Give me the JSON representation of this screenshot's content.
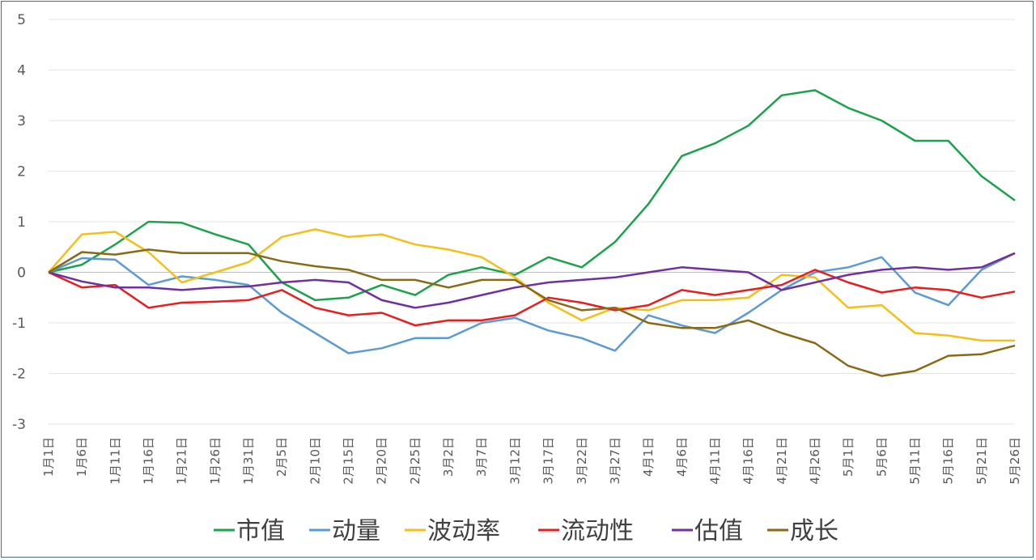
{
  "chart_data": {
    "type": "line",
    "title": "",
    "xlabel": "",
    "ylabel": "",
    "ylim": [
      -3,
      5
    ],
    "yticks": [
      5,
      4,
      3,
      2,
      1,
      0,
      -1,
      -2,
      -3
    ],
    "grid": true,
    "legend_position": "bottom",
    "x_tick_labels": [
      "1月1日",
      "1月6日",
      "1月11日",
      "1月16日",
      "1月21日",
      "1月26日",
      "1月31日",
      "2月5日",
      "2月10日",
      "2月15日",
      "2月20日",
      "2月25日",
      "3月2日",
      "3月7日",
      "3月12日",
      "3月17日",
      "3月22日",
      "3月27日",
      "4月1日",
      "4月6日",
      "4月11日",
      "4月16日",
      "4月21日",
      "4月26日",
      "5月1日",
      "5月6日",
      "5月11日",
      "5月16日",
      "5月21日",
      "5月26日"
    ],
    "x": [
      "1月1日",
      "1月6日",
      "1月11日",
      "1月16日",
      "1月21日",
      "1月26日",
      "1月31日",
      "2月5日",
      "2月10日",
      "2月15日",
      "2月20日",
      "2月25日",
      "3月2日",
      "3月7日",
      "3月12日",
      "3月17日",
      "3月22日",
      "3月27日",
      "4月1日",
      "4月6日",
      "4月11日",
      "4月16日",
      "4月21日",
      "4月26日",
      "5月1日",
      "5月6日",
      "5月11日",
      "5月16日",
      "5月21日",
      "5月26日"
    ],
    "series": [
      {
        "name": "市值",
        "color": "#1aa34a",
        "values": [
          0.0,
          0.15,
          0.55,
          1.0,
          0.98,
          0.75,
          0.55,
          -0.2,
          -0.55,
          -0.5,
          -0.25,
          -0.45,
          -0.05,
          0.1,
          -0.05,
          0.3,
          0.1,
          0.6,
          1.35,
          2.3,
          2.55,
          2.9,
          3.5,
          3.6,
          3.25,
          3.0,
          2.6,
          2.6,
          1.9,
          1.42
        ]
      },
      {
        "name": "动量",
        "color": "#5b9bd5",
        "values": [
          0.0,
          0.28,
          0.25,
          -0.25,
          -0.08,
          -0.15,
          -0.25,
          -0.8,
          -1.2,
          -1.6,
          -1.5,
          -1.3,
          -1.3,
          -1.0,
          -0.9,
          -1.15,
          -1.3,
          -1.55,
          -0.85,
          -1.05,
          -1.2,
          -0.8,
          -0.35,
          0.0,
          0.1,
          0.3,
          -0.4,
          -0.65,
          0.05,
          0.38
        ]
      },
      {
        "name": "波动率",
        "color": "#f5bf1a",
        "values": [
          0.0,
          0.75,
          0.8,
          0.4,
          -0.2,
          0.0,
          0.2,
          0.7,
          0.85,
          0.7,
          0.75,
          0.55,
          0.45,
          0.3,
          -0.1,
          -0.6,
          -0.95,
          -0.7,
          -0.75,
          -0.55,
          -0.55,
          -0.5,
          -0.05,
          -0.1,
          -0.7,
          -0.65,
          -1.2,
          -1.25,
          -1.35,
          -1.35
        ]
      },
      {
        "name": "流动性",
        "color": "#e81e1e",
        "values": [
          0.0,
          -0.3,
          -0.25,
          -0.7,
          -0.6,
          -0.58,
          -0.55,
          -0.35,
          -0.7,
          -0.85,
          -0.8,
          -1.05,
          -0.95,
          -0.95,
          -0.85,
          -0.5,
          -0.6,
          -0.75,
          -0.65,
          -0.35,
          -0.45,
          -0.35,
          -0.25,
          0.05,
          -0.2,
          -0.4,
          -0.3,
          -0.35,
          -0.5,
          -0.38
        ]
      },
      {
        "name": "估值",
        "color": "#7030a0",
        "values": [
          0.0,
          -0.18,
          -0.3,
          -0.3,
          -0.35,
          -0.3,
          -0.28,
          -0.2,
          -0.15,
          -0.2,
          -0.55,
          -0.7,
          -0.6,
          -0.45,
          -0.3,
          -0.2,
          -0.15,
          -0.1,
          0.0,
          0.1,
          0.05,
          0.0,
          -0.35,
          -0.2,
          -0.05,
          0.05,
          0.1,
          0.05,
          0.1,
          0.38
        ]
      },
      {
        "name": "成长",
        "color": "#8b6914",
        "values": [
          0.0,
          0.4,
          0.35,
          0.45,
          0.38,
          0.38,
          0.38,
          0.22,
          0.12,
          0.05,
          -0.15,
          -0.15,
          -0.3,
          -0.15,
          -0.15,
          -0.55,
          -0.75,
          -0.7,
          -1.0,
          -1.1,
          -1.1,
          -0.95,
          -1.2,
          -1.4,
          -1.85,
          -2.05,
          -1.95,
          -1.65,
          -1.62,
          -1.45
        ]
      }
    ]
  }
}
